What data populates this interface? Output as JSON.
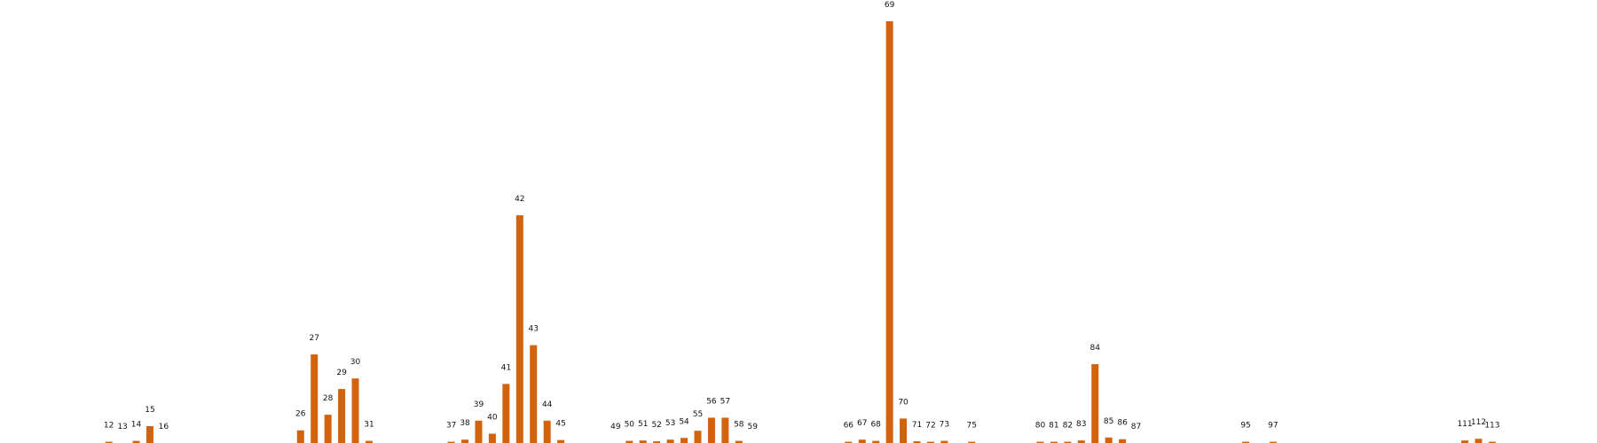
{
  "chart_data": {
    "type": "bar",
    "title": "",
    "xlabel": "",
    "ylabel": "",
    "bar_color": "#d2620c",
    "grid": false,
    "xlim": [
      6,
      120
    ],
    "ylim": [
      0,
      1.0
    ],
    "labels": [
      "12",
      "13",
      "14",
      "15",
      "16",
      "26",
      "27",
      "28",
      "29",
      "30",
      "31",
      "37",
      "38",
      "39",
      "40",
      "41",
      "42",
      "43",
      "44",
      "45",
      "49",
      "50",
      "51",
      "52",
      "53",
      "54",
      "55",
      "56",
      "57",
      "58",
      "59",
      "66",
      "67",
      "68",
      "69",
      "70",
      "71",
      "72",
      "73",
      "75",
      "80",
      "81",
      "82",
      "83",
      "84",
      "85",
      "86",
      "87",
      "95",
      "97",
      "111",
      "112",
      "113"
    ],
    "x": [
      12,
      13,
      14,
      15,
      16,
      26,
      27,
      28,
      29,
      30,
      31,
      37,
      38,
      39,
      40,
      41,
      42,
      43,
      44,
      45,
      49,
      50,
      51,
      52,
      53,
      54,
      55,
      56,
      57,
      58,
      59,
      66,
      67,
      68,
      69,
      70,
      71,
      72,
      73,
      75,
      80,
      81,
      82,
      83,
      84,
      85,
      86,
      87,
      95,
      97,
      111,
      112,
      113
    ],
    "values": [
      0.003,
      0,
      0.005,
      0.04,
      0,
      0.03,
      0.21,
      0.067,
      0.128,
      0.153,
      0.005,
      0.003,
      0.008,
      0.053,
      0.022,
      0.14,
      0.54,
      0.232,
      0.053,
      0.007,
      0,
      0.005,
      0.006,
      0.004,
      0.008,
      0.012,
      0.029,
      0.06,
      0.06,
      0.005,
      0,
      0.003,
      0.008,
      0.005,
      1.0,
      0.058,
      0.004,
      0.003,
      0.005,
      0.003,
      0.003,
      0.003,
      0.003,
      0.006,
      0.187,
      0.013,
      0.009,
      0,
      0.003,
      0.003,
      0.006,
      0.01,
      0.003
    ]
  }
}
